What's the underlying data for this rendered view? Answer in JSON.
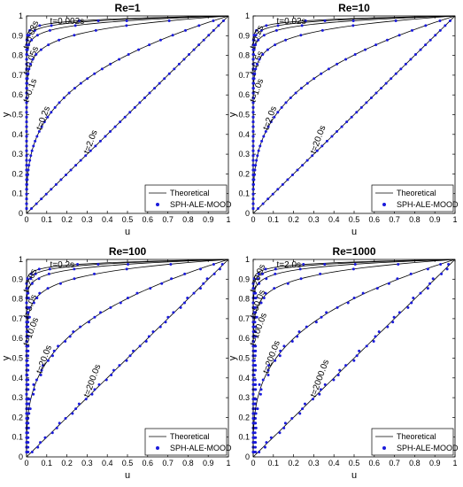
{
  "chart_data": [
    {
      "type": "line",
      "title": "Re=1",
      "xlabel": "u",
      "ylabel": "y",
      "xlim": [
        0,
        1
      ],
      "ylim": [
        0,
        1
      ],
      "xticks": [
        "0",
        "0.1",
        "0.2",
        "0.3",
        "0.4",
        "0.5",
        "0.6",
        "0.7",
        "0.8",
        "0.9",
        "1"
      ],
      "yticks": [
        "0",
        "0.1",
        "0.2",
        "0.3",
        "0.4",
        "0.5",
        "0.6",
        "0.7",
        "0.8",
        "0.9",
        "1"
      ],
      "grid": false,
      "legend": {
        "position": "bottom-right",
        "entries": [
          "Theoretical",
          "SPH-ALE-MOOD"
        ]
      },
      "curve_labels": [
        "t=0.002s",
        "t=0.02s",
        "t=0.05s",
        "t=0.1s",
        "t=0.2s",
        "t=2.0s"
      ],
      "series_k": [
        0.05,
        0.16,
        0.3,
        0.5,
        0.78,
        1.0
      ],
      "colors": {
        "theoretical": "#000000",
        "sph": "#1a1adb"
      }
    },
    {
      "type": "line",
      "title": "Re=10",
      "xlabel": "u",
      "ylabel": "y",
      "xlim": [
        0,
        1
      ],
      "ylim": [
        0,
        1
      ],
      "xticks": [
        "0",
        "0.1",
        "0.2",
        "0.3",
        "0.4",
        "0.5",
        "0.6",
        "0.7",
        "0.8",
        "0.9",
        "1"
      ],
      "yticks": [
        "0",
        "0.1",
        "0.2",
        "0.3",
        "0.4",
        "0.5",
        "0.6",
        "0.7",
        "0.8",
        "0.9",
        "1"
      ],
      "grid": false,
      "legend": {
        "position": "bottom-right",
        "entries": [
          "Theoretical",
          "SPH-ALE-MOOD"
        ]
      },
      "curve_labels": [
        "t=0.02s",
        "t=0.2s",
        "t=0.5s",
        "t=1.0s",
        "t=2.0s",
        "t=20.0s"
      ],
      "series_k": [
        0.05,
        0.16,
        0.3,
        0.5,
        0.78,
        1.0
      ],
      "colors": {
        "theoretical": "#000000",
        "sph": "#1a1adb"
      }
    },
    {
      "type": "line",
      "title": "Re=100",
      "xlabel": "u",
      "ylabel": "y",
      "xlim": [
        0,
        1
      ],
      "ylim": [
        0,
        1
      ],
      "xticks": [
        "0",
        "0.1",
        "0.2",
        "0.3",
        "0.4",
        "0.5",
        "0.6",
        "0.7",
        "0.8",
        "0.9",
        "1"
      ],
      "yticks": [
        "0",
        "0.1",
        "0.2",
        "0.3",
        "0.4",
        "0.5",
        "0.6",
        "0.7",
        "0.8",
        "0.9",
        "1"
      ],
      "grid": false,
      "legend": {
        "position": "bottom-right",
        "entries": [
          "Theoretical",
          "SPH-ALE-MOOD"
        ]
      },
      "curve_labels": [
        "t=0.2s",
        "t=2.0s",
        "t=5.0s",
        "t=10.0s",
        "t=20.0s",
        "t=200.0s"
      ],
      "series_k": [
        0.05,
        0.16,
        0.3,
        0.5,
        0.78,
        1.0
      ],
      "colors": {
        "theoretical": "#000000",
        "sph": "#1a1adb"
      }
    },
    {
      "type": "line",
      "title": "Re=1000",
      "xlabel": "u",
      "ylabel": "y",
      "xlim": [
        0,
        1
      ],
      "ylim": [
        0,
        1
      ],
      "xticks": [
        "0",
        "0.1",
        "0.2",
        "0.3",
        "0.4",
        "0.5",
        "0.6",
        "0.7",
        "0.8",
        "0.9",
        "1"
      ],
      "yticks": [
        "0",
        "0.1",
        "0.2",
        "0.3",
        "0.4",
        "0.5",
        "0.6",
        "0.7",
        "0.8",
        "0.9",
        "1"
      ],
      "grid": false,
      "legend": {
        "position": "bottom-right",
        "entries": [
          "Theoretical",
          "SPH-ALE-MOOD"
        ]
      },
      "curve_labels": [
        "t=2.0s",
        "t=20.0s",
        "t=50.0s",
        "t=100.0s",
        "t=200.0s",
        "t=2000.0s"
      ],
      "series_k": [
        0.05,
        0.16,
        0.3,
        0.5,
        0.78,
        1.0
      ],
      "colors": {
        "theoretical": "#000000",
        "sph": "#1a1adb"
      }
    }
  ]
}
